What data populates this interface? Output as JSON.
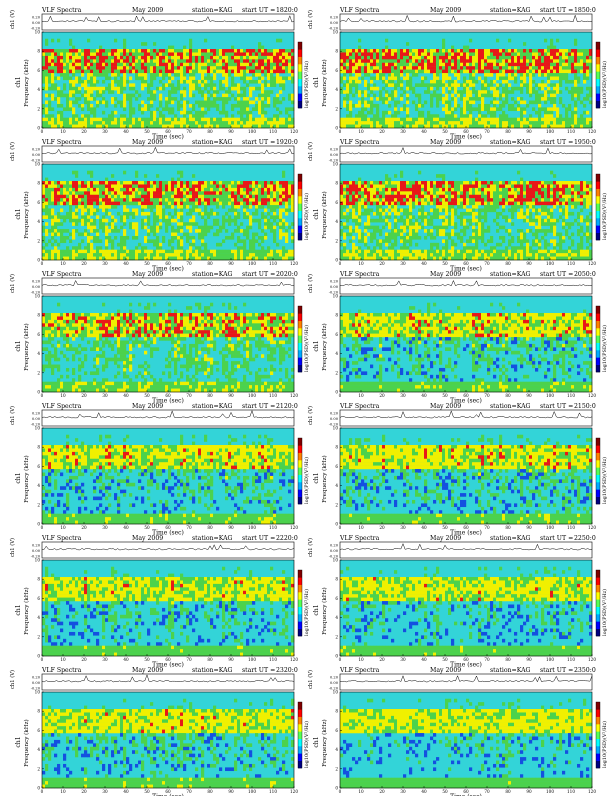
{
  "common": {
    "title_prefix": "VLF Spectra",
    "date": "May 2009",
    "station": "station=KAG",
    "start_label": "start  UT =",
    "xlabel": "Time  (sec)",
    "ylabel_top": "ch1 (V)",
    "ylabel_freq": "Frequency  (kHz)",
    "ylabel_ch1": "ch1",
    "colorbar_label": "log10(PSD)(V²/Hz)",
    "x_ticks": [
      "0",
      "10",
      "20",
      "30",
      "40",
      "50",
      "60",
      "70",
      "80",
      "90",
      "100",
      "110",
      "120"
    ],
    "y_ticks": [
      "0",
      "2",
      "4",
      "6",
      "8",
      "10"
    ],
    "top_ticks": [
      "0.20",
      "0.00",
      "-0.20"
    ]
  },
  "colors": {
    "bg_cyan": "#33d4d8",
    "green": "#4cd24c",
    "yellow": "#f0f000",
    "red": "#e81818",
    "blue": "#1450e0",
    "colorbar": [
      "#000080",
      "#0000ff",
      "#00aaff",
      "#00ffff",
      "#55ff55",
      "#ffff00",
      "#ff8000",
      "#ff0000",
      "#800000"
    ]
  },
  "chart_data": [
    {
      "type": "heatmap",
      "title": "VLF Spectra  May 2009  station=KAG  start UT =1820:0",
      "start_ut": "1820:0",
      "xlabel": "Time  (sec)",
      "ylabel": "Frequency  (kHz)",
      "xlim": [
        0,
        120
      ],
      "ylim": [
        0,
        10
      ],
      "intensity": 1.0
    },
    {
      "type": "heatmap",
      "title": "VLF Spectra  May 2009  station=KAG  start UT =1850:0",
      "start_ut": "1850:0",
      "xlabel": "Time  (sec)",
      "ylabel": "Frequency  (kHz)",
      "xlim": [
        0,
        120
      ],
      "ylim": [
        0,
        10
      ],
      "intensity": 1.0
    },
    {
      "type": "heatmap",
      "title": "VLF Spectra  May 2009  station=KAG  start UT =1920:0",
      "start_ut": "1920:0",
      "xlabel": "Time  (sec)",
      "ylabel": "Frequency  (kHz)",
      "xlim": [
        0,
        120
      ],
      "ylim": [
        0,
        10
      ],
      "intensity": 0.95
    },
    {
      "type": "heatmap",
      "title": "VLF Spectra  May 2009  station=KAG  start UT =1950:0",
      "start_ut": "1950:0",
      "xlabel": "Time  (sec)",
      "ylabel": "Frequency  (kHz)",
      "xlim": [
        0,
        120
      ],
      "ylim": [
        0,
        10
      ],
      "intensity": 0.95
    },
    {
      "type": "heatmap",
      "title": "VLF Spectra  May 2009  station=KAG  start UT =2020:0",
      "start_ut": "2020:0",
      "xlabel": "Time  (sec)",
      "ylabel": "Frequency  (kHz)",
      "xlim": [
        0,
        120
      ],
      "ylim": [
        0,
        10
      ],
      "intensity": 0.75
    },
    {
      "type": "heatmap",
      "title": "VLF Spectra  May 2009  station=KAG  start UT =2050:0",
      "start_ut": "2050:0",
      "xlabel": "Time  (sec)",
      "ylabel": "Frequency  (kHz)",
      "xlim": [
        0,
        120
      ],
      "ylim": [
        0,
        10
      ],
      "intensity": 0.6
    },
    {
      "type": "heatmap",
      "title": "VLF Spectra  May 2009  station=KAG  start UT =2120:0",
      "start_ut": "2120:0",
      "xlabel": "Time  (sec)",
      "ylabel": "Frequency  (kHz)",
      "xlim": [
        0,
        120
      ],
      "ylim": [
        0,
        10
      ],
      "intensity": 0.55
    },
    {
      "type": "heatmap",
      "title": "VLF Spectra  May 2009  station=KAG  start UT =2150:0",
      "start_ut": "2150:0",
      "xlabel": "Time  (sec)",
      "ylabel": "Frequency  (kHz)",
      "xlim": [
        0,
        120
      ],
      "ylim": [
        0,
        10
      ],
      "intensity": 0.55
    },
    {
      "type": "heatmap",
      "title": "VLF Spectra  May 2009  station=KAG  start UT =2220:0",
      "start_ut": "2220:0",
      "xlabel": "Time  (sec)",
      "ylabel": "Frequency  (kHz)",
      "xlim": [
        0,
        120
      ],
      "ylim": [
        0,
        10
      ],
      "intensity": 0.5
    },
    {
      "type": "heatmap",
      "title": "VLF Spectra  May 2009  station=KAG  start UT =2250:0",
      "start_ut": "2250:0",
      "xlabel": "Time  (sec)",
      "ylabel": "Frequency  (kHz)",
      "xlim": [
        0,
        120
      ],
      "ylim": [
        0,
        10
      ],
      "intensity": 0.45
    },
    {
      "type": "heatmap",
      "title": "VLF Spectra  May 2009  station=KAG  start UT =2320:0",
      "start_ut": "2320:0",
      "xlabel": "Time  (sec)",
      "ylabel": "Frequency  (kHz)",
      "xlim": [
        0,
        120
      ],
      "ylim": [
        0,
        10
      ],
      "intensity": 0.5
    },
    {
      "type": "heatmap",
      "title": "VLF Spectra  May 2009  station=KAG  start UT =2350:0",
      "start_ut": "2350:0",
      "xlabel": "Time  (sec)",
      "ylabel": "Frequency  (kHz)",
      "xlim": [
        0,
        120
      ],
      "ylim": [
        0,
        10
      ],
      "intensity": 0.4
    }
  ]
}
